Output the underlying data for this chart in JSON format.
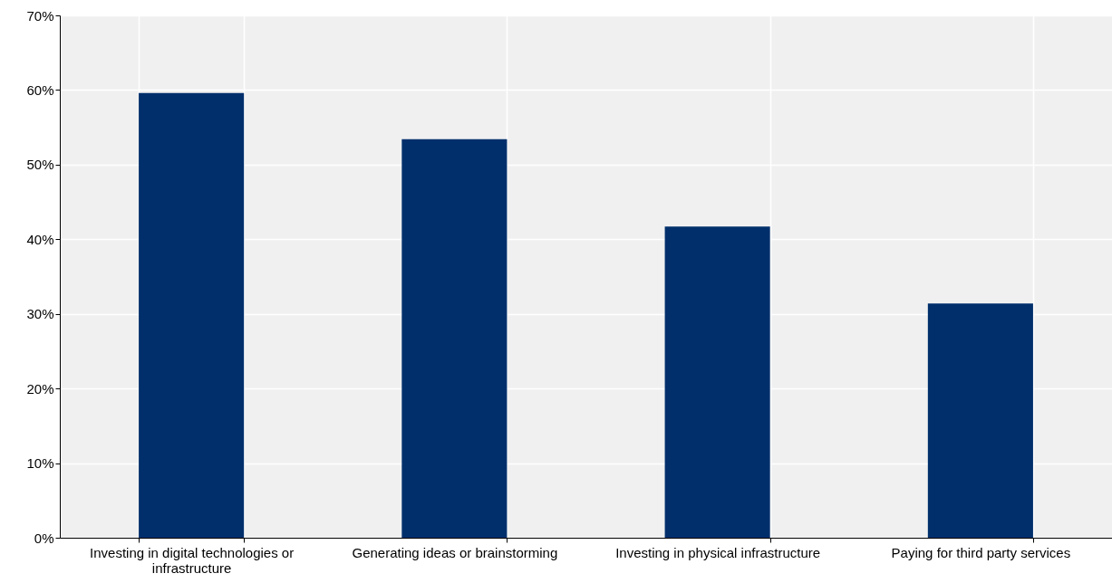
{
  "chart_data": {
    "type": "bar",
    "categories": [
      "Investing in digital technologies or infrastructure",
      "Generating ideas or brainstorming",
      "Investing in physical infrastructure",
      "Paying for third party services"
    ],
    "values": [
      59.6,
      53.4,
      41.7,
      31.4
    ],
    "color": "#002f6c",
    "ylim": [
      0,
      70
    ],
    "yticks": [
      {
        "value": 0,
        "label": "0%"
      },
      {
        "value": 10,
        "label": "10%"
      },
      {
        "value": 20,
        "label": "20%"
      },
      {
        "value": 30,
        "label": "30%"
      },
      {
        "value": 40,
        "label": "40%"
      },
      {
        "value": 50,
        "label": "50%"
      },
      {
        "value": 60,
        "label": "60%"
      },
      {
        "value": 70,
        "label": "70%"
      }
    ],
    "grid": true
  }
}
